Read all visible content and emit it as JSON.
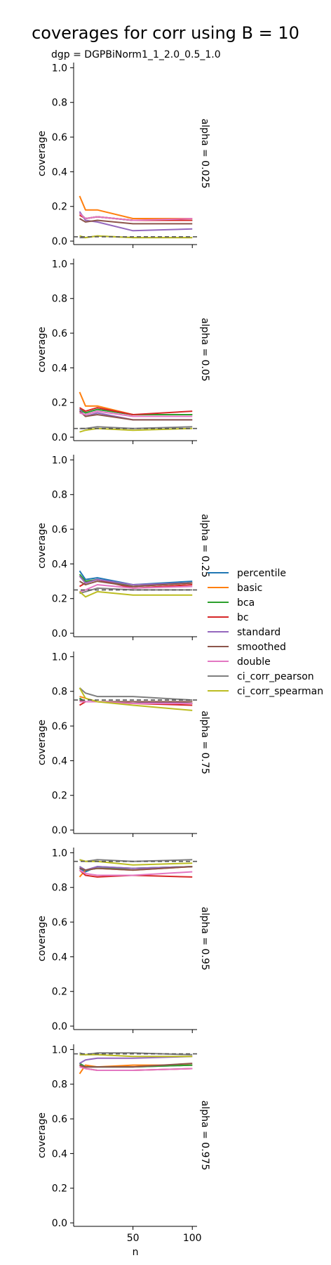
{
  "chart_data": {
    "type": "line",
    "title": "coverages for corr using B = 10",
    "subtitle": "dgp = DGPBiNorm1_1_2.0_0.5_1.0",
    "xlabel": "n",
    "ylabel": "coverage",
    "x": [
      5,
      10,
      20,
      50,
      100
    ],
    "xlim": [
      0,
      104
    ],
    "ylim": [
      -0.02,
      1.03
    ],
    "xticks": [
      "50",
      "100"
    ],
    "yticks": [
      "0.0",
      "0.2",
      "0.4",
      "0.6",
      "0.8",
      "1.0"
    ],
    "legend_position": "right",
    "series_styles": [
      {
        "name": "percentile",
        "color": "#1f77b4"
      },
      {
        "name": "basic",
        "color": "#ff7f0e"
      },
      {
        "name": "bca",
        "color": "#2ca02c"
      },
      {
        "name": "bc",
        "color": "#d62728"
      },
      {
        "name": "standard",
        "color": "#9467bd"
      },
      {
        "name": "smoothed",
        "color": "#8c564b"
      },
      {
        "name": "double",
        "color": "#e377c2"
      },
      {
        "name": "ci_corr_pearson",
        "color": "#7f7f7f"
      },
      {
        "name": "ci_corr_spearman",
        "color": "#bcbd22"
      }
    ],
    "panels": [
      {
        "label": "alpha = 0.025",
        "alpha": 0.025,
        "series": [
          {
            "name": "percentile",
            "values": [
              0.16,
              0.13,
              0.14,
              0.12,
              0.12
            ]
          },
          {
            "name": "basic",
            "values": [
              0.26,
              0.18,
              0.18,
              0.13,
              0.13
            ]
          },
          {
            "name": "bca",
            "values": [
              0.16,
              0.13,
              0.14,
              0.12,
              0.12
            ]
          },
          {
            "name": "bc",
            "values": [
              0.15,
              0.13,
              0.14,
              0.12,
              0.12
            ]
          },
          {
            "name": "standard",
            "values": [
              0.17,
              0.12,
              0.11,
              0.06,
              0.07
            ]
          },
          {
            "name": "smoothed",
            "values": [
              0.13,
              0.11,
              0.12,
              0.1,
              0.1
            ]
          },
          {
            "name": "double",
            "values": [
              0.16,
              0.13,
              0.14,
              0.12,
              0.13
            ]
          },
          {
            "name": "ci_corr_pearson",
            "values": [
              0.02,
              0.02,
              0.03,
              0.02,
              0.02
            ]
          },
          {
            "name": "ci_corr_spearman",
            "values": [
              0.03,
              0.02,
              0.03,
              0.02,
              0.02
            ]
          }
        ]
      },
      {
        "label": "alpha = 0.05",
        "alpha": 0.05,
        "series": [
          {
            "name": "percentile",
            "values": [
              0.16,
              0.14,
              0.16,
              0.13,
              0.13
            ]
          },
          {
            "name": "basic",
            "values": [
              0.26,
              0.18,
              0.18,
              0.13,
              0.13
            ]
          },
          {
            "name": "bca",
            "values": [
              0.16,
              0.14,
              0.16,
              0.13,
              0.13
            ]
          },
          {
            "name": "bc",
            "values": [
              0.17,
              0.15,
              0.17,
              0.13,
              0.15
            ]
          },
          {
            "name": "standard",
            "values": [
              0.16,
              0.12,
              0.14,
              0.1,
              0.1
            ]
          },
          {
            "name": "smoothed",
            "values": [
              0.15,
              0.12,
              0.13,
              0.1,
              0.1
            ]
          },
          {
            "name": "double",
            "values": [
              0.14,
              0.13,
              0.15,
              0.12,
              0.12
            ]
          },
          {
            "name": "ci_corr_pearson",
            "values": [
              0.05,
              0.05,
              0.06,
              0.05,
              0.06
            ]
          },
          {
            "name": "ci_corr_spearman",
            "values": [
              0.03,
              0.04,
              0.05,
              0.04,
              0.05
            ]
          }
        ]
      },
      {
        "label": "alpha = 0.25",
        "alpha": 0.25,
        "series": [
          {
            "name": "percentile",
            "values": [
              0.36,
              0.31,
              0.32,
              0.28,
              0.3
            ]
          },
          {
            "name": "basic",
            "values": [
              0.33,
              0.29,
              0.31,
              0.27,
              0.29
            ]
          },
          {
            "name": "bca",
            "values": [
              0.34,
              0.3,
              0.31,
              0.27,
              0.29
            ]
          },
          {
            "name": "bc",
            "values": [
              0.27,
              0.29,
              0.31,
              0.26,
              0.28
            ]
          },
          {
            "name": "standard",
            "values": [
              0.33,
              0.29,
              0.31,
              0.28,
              0.29
            ]
          },
          {
            "name": "smoothed",
            "values": [
              0.3,
              0.28,
              0.3,
              0.27,
              0.29
            ]
          },
          {
            "name": "double",
            "values": [
              0.24,
              0.25,
              0.28,
              0.26,
              0.27
            ]
          },
          {
            "name": "ci_corr_pearson",
            "values": [
              0.23,
              0.24,
              0.26,
              0.25,
              0.25
            ]
          },
          {
            "name": "ci_corr_spearman",
            "values": [
              0.24,
              0.21,
              0.24,
              0.22,
              0.22
            ]
          }
        ]
      },
      {
        "label": "alpha = 0.75",
        "alpha": 0.75,
        "series": [
          {
            "name": "percentile",
            "values": [
              0.76,
              0.74,
              0.74,
              0.74,
              0.73
            ]
          },
          {
            "name": "basic",
            "values": [
              0.77,
              0.76,
              0.74,
              0.74,
              0.74
            ]
          },
          {
            "name": "bca",
            "values": [
              0.76,
              0.74,
              0.74,
              0.74,
              0.73
            ]
          },
          {
            "name": "bc",
            "values": [
              0.72,
              0.74,
              0.74,
              0.73,
              0.72
            ]
          },
          {
            "name": "standard",
            "values": [
              0.75,
              0.74,
              0.74,
              0.74,
              0.73
            ]
          },
          {
            "name": "smoothed",
            "values": [
              0.75,
              0.74,
              0.74,
              0.74,
              0.74
            ]
          },
          {
            "name": "double",
            "values": [
              0.74,
              0.74,
              0.74,
              0.73,
              0.73
            ]
          },
          {
            "name": "ci_corr_pearson",
            "values": [
              0.82,
              0.79,
              0.77,
              0.77,
              0.75
            ]
          },
          {
            "name": "ci_corr_spearman",
            "values": [
              0.82,
              0.76,
              0.74,
              0.72,
              0.69
            ]
          }
        ]
      },
      {
        "label": "alpha = 0.95",
        "alpha": 0.95,
        "series": [
          {
            "name": "percentile",
            "values": [
              0.91,
              0.89,
              0.92,
              0.91,
              0.92
            ]
          },
          {
            "name": "basic",
            "values": [
              0.86,
              0.9,
              0.91,
              0.9,
              0.92
            ]
          },
          {
            "name": "bca",
            "values": [
              0.92,
              0.9,
              0.91,
              0.91,
              0.92
            ]
          },
          {
            "name": "bc",
            "values": [
              0.9,
              0.87,
              0.86,
              0.87,
              0.86
            ]
          },
          {
            "name": "standard",
            "values": [
              0.92,
              0.9,
              0.92,
              0.91,
              0.92
            ]
          },
          {
            "name": "smoothed",
            "values": [
              0.91,
              0.9,
              0.91,
              0.9,
              0.92
            ]
          },
          {
            "name": "double",
            "values": [
              0.9,
              0.88,
              0.87,
              0.87,
              0.89
            ]
          },
          {
            "name": "ci_corr_pearson",
            "values": [
              0.96,
              0.95,
              0.96,
              0.95,
              0.96
            ]
          },
          {
            "name": "ci_corr_spearman",
            "values": [
              0.96,
              0.95,
              0.95,
              0.93,
              0.94
            ]
          }
        ]
      },
      {
        "label": "alpha = 0.975",
        "alpha": 0.975,
        "series": [
          {
            "name": "percentile",
            "values": [
              0.92,
              0.9,
              0.9,
              0.9,
              0.91
            ]
          },
          {
            "name": "basic",
            "values": [
              0.86,
              0.91,
              0.9,
              0.91,
              0.91
            ]
          },
          {
            "name": "bca",
            "values": [
              0.92,
              0.9,
              0.9,
              0.9,
              0.91
            ]
          },
          {
            "name": "bc",
            "values": [
              0.91,
              0.89,
              0.88,
              0.88,
              0.89
            ]
          },
          {
            "name": "standard",
            "values": [
              0.92,
              0.94,
              0.95,
              0.95,
              0.96
            ]
          },
          {
            "name": "smoothed",
            "values": [
              0.91,
              0.9,
              0.9,
              0.9,
              0.92
            ]
          },
          {
            "name": "double",
            "values": [
              0.9,
              0.89,
              0.88,
              0.88,
              0.89
            ]
          },
          {
            "name": "ci_corr_pearson",
            "values": [
              0.98,
              0.97,
              0.98,
              0.98,
              0.97
            ]
          },
          {
            "name": "ci_corr_spearman",
            "values": [
              0.97,
              0.97,
              0.97,
              0.96,
              0.96
            ]
          }
        ]
      }
    ]
  }
}
